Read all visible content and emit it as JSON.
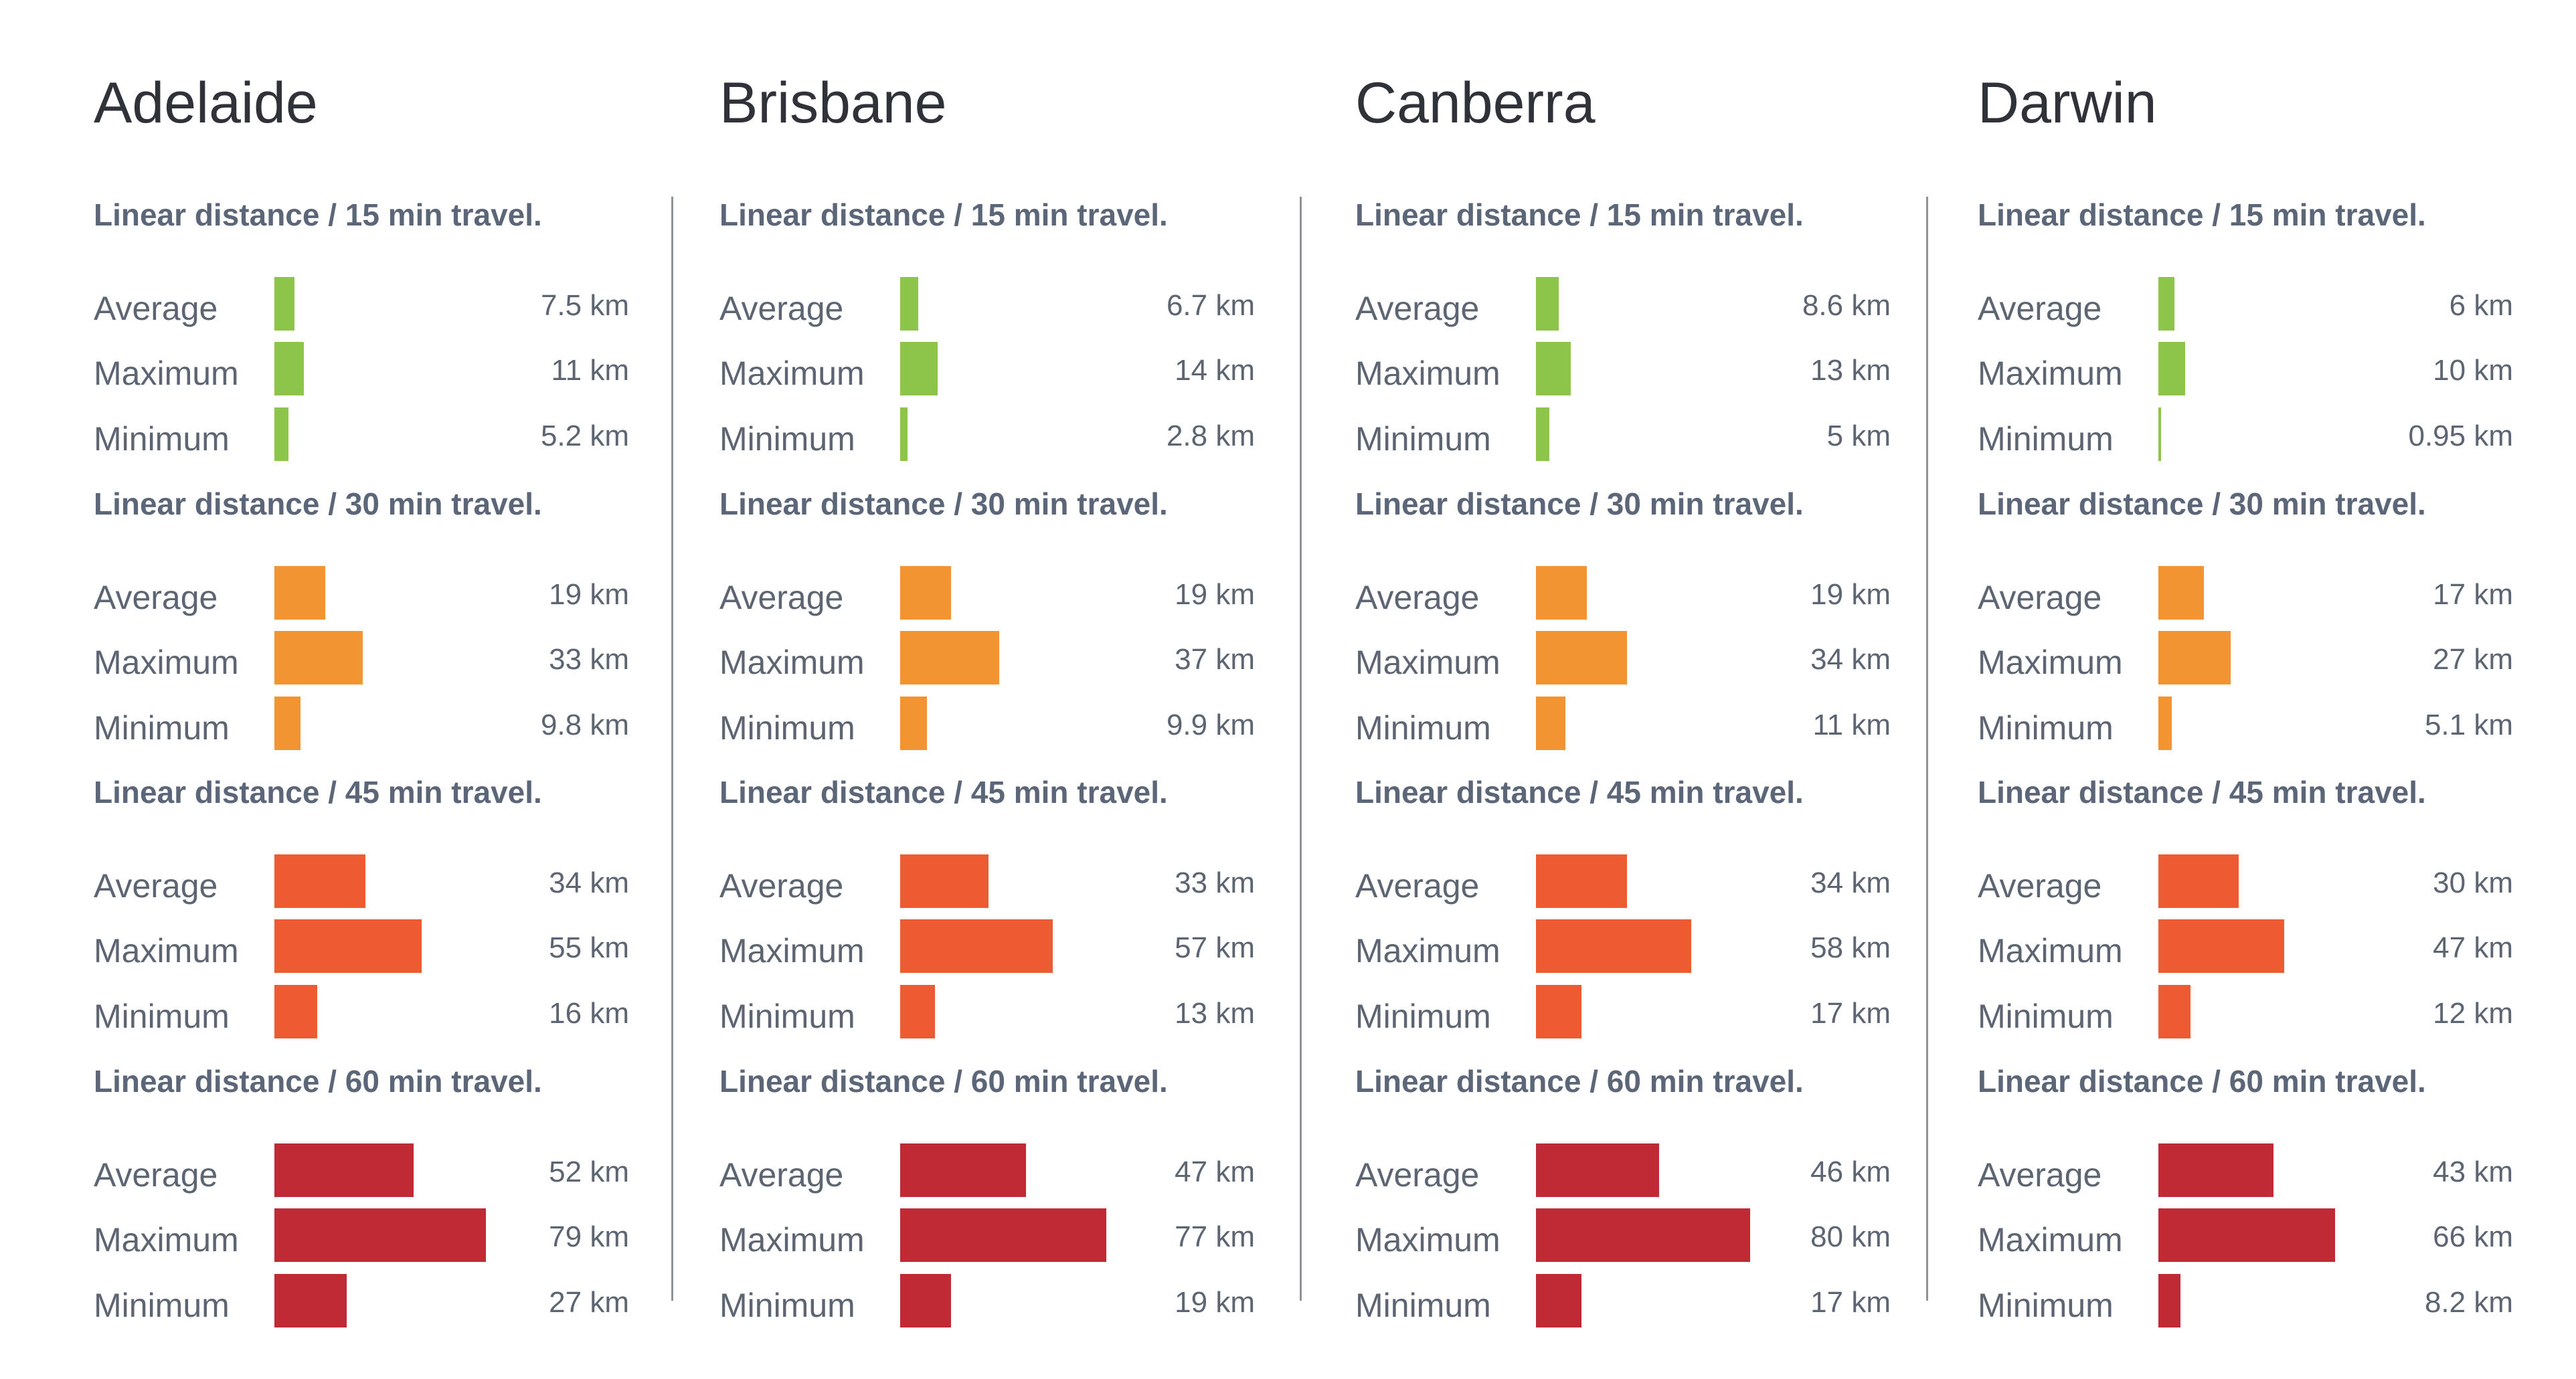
{
  "colors": {
    "15": "#8cc54a",
    "30": "#f39433",
    "45": "#ec5b32",
    "60": "#c02a35",
    "text": "#5d6573",
    "title": "#2f3238",
    "divider": "#8e9196"
  },
  "chart_data": {
    "type": "bar",
    "orientation": "horizontal",
    "unit": "km",
    "cities": [
      {
        "name": "Adelaide",
        "groups": [
          {
            "title": "Linear distance / 15 min travel.",
            "minutes": 15,
            "rows": [
              {
                "label": "Average",
                "value": 7.5,
                "text": "7.5 km"
              },
              {
                "label": "Maximum",
                "value": 11,
                "text": "11 km"
              },
              {
                "label": "Minimum",
                "value": 5.2,
                "text": "5.2 km"
              }
            ]
          },
          {
            "title": "Linear distance / 30 min travel.",
            "minutes": 30,
            "rows": [
              {
                "label": "Average",
                "value": 19,
                "text": "19 km"
              },
              {
                "label": "Maximum",
                "value": 33,
                "text": "33 km"
              },
              {
                "label": "Minimum",
                "value": 9.8,
                "text": "9.8 km"
              }
            ]
          },
          {
            "title": "Linear distance / 45 min travel.",
            "minutes": 45,
            "rows": [
              {
                "label": "Average",
                "value": 34,
                "text": "34 km"
              },
              {
                "label": "Maximum",
                "value": 55,
                "text": "55 km"
              },
              {
                "label": "Minimum",
                "value": 16,
                "text": "16 km"
              }
            ]
          },
          {
            "title": "Linear distance / 60 min travel.",
            "minutes": 60,
            "rows": [
              {
                "label": "Average",
                "value": 52,
                "text": "52 km"
              },
              {
                "label": "Maximum",
                "value": 79,
                "text": "79 km"
              },
              {
                "label": "Minimum",
                "value": 27,
                "text": "27 km"
              }
            ]
          }
        ]
      },
      {
        "name": "Brisbane",
        "groups": [
          {
            "title": "Linear distance / 15 min travel.",
            "minutes": 15,
            "rows": [
              {
                "label": "Average",
                "value": 6.7,
                "text": "6.7 km"
              },
              {
                "label": "Maximum",
                "value": 14,
                "text": "14 km"
              },
              {
                "label": "Minimum",
                "value": 2.8,
                "text": "2.8 km"
              }
            ]
          },
          {
            "title": "Linear distance / 30 min travel.",
            "minutes": 30,
            "rows": [
              {
                "label": "Average",
                "value": 19,
                "text": "19 km"
              },
              {
                "label": "Maximum",
                "value": 37,
                "text": "37 km"
              },
              {
                "label": "Minimum",
                "value": 9.9,
                "text": "9.9 km"
              }
            ]
          },
          {
            "title": "Linear distance / 45 min travel.",
            "minutes": 45,
            "rows": [
              {
                "label": "Average",
                "value": 33,
                "text": "33 km"
              },
              {
                "label": "Maximum",
                "value": 57,
                "text": "57 km"
              },
              {
                "label": "Minimum",
                "value": 13,
                "text": "13 km"
              }
            ]
          },
          {
            "title": "Linear distance / 60 min travel.",
            "minutes": 60,
            "rows": [
              {
                "label": "Average",
                "value": 47,
                "text": "47 km"
              },
              {
                "label": "Maximum",
                "value": 77,
                "text": "77 km"
              },
              {
                "label": "Minimum",
                "value": 19,
                "text": "19 km"
              }
            ]
          }
        ]
      },
      {
        "name": "Canberra",
        "groups": [
          {
            "title": "Linear distance / 15 min travel.",
            "minutes": 15,
            "rows": [
              {
                "label": "Average",
                "value": 8.6,
                "text": "8.6 km"
              },
              {
                "label": "Maximum",
                "value": 13,
                "text": "13 km"
              },
              {
                "label": "Minimum",
                "value": 5,
                "text": "5 km"
              }
            ]
          },
          {
            "title": "Linear distance / 30 min travel.",
            "minutes": 30,
            "rows": [
              {
                "label": "Average",
                "value": 19,
                "text": "19 km"
              },
              {
                "label": "Maximum",
                "value": 34,
                "text": "34 km"
              },
              {
                "label": "Minimum",
                "value": 11,
                "text": "11 km"
              }
            ]
          },
          {
            "title": "Linear distance / 45 min travel.",
            "minutes": 45,
            "rows": [
              {
                "label": "Average",
                "value": 34,
                "text": "34 km"
              },
              {
                "label": "Maximum",
                "value": 58,
                "text": "58 km"
              },
              {
                "label": "Minimum",
                "value": 17,
                "text": "17 km"
              }
            ]
          },
          {
            "title": "Linear distance / 60 min travel.",
            "minutes": 60,
            "rows": [
              {
                "label": "Average",
                "value": 46,
                "text": "46 km"
              },
              {
                "label": "Maximum",
                "value": 80,
                "text": "80 km"
              },
              {
                "label": "Minimum",
                "value": 17,
                "text": "17 km"
              }
            ]
          }
        ]
      },
      {
        "name": "Darwin",
        "groups": [
          {
            "title": "Linear distance / 15 min travel.",
            "minutes": 15,
            "rows": [
              {
                "label": "Average",
                "value": 6,
                "text": "6 km"
              },
              {
                "label": "Maximum",
                "value": 10,
                "text": "10 km"
              },
              {
                "label": "Minimum",
                "value": 0.95,
                "text": "0.95 km"
              }
            ]
          },
          {
            "title": "Linear distance / 30 min travel.",
            "minutes": 30,
            "rows": [
              {
                "label": "Average",
                "value": 17,
                "text": "17 km"
              },
              {
                "label": "Maximum",
                "value": 27,
                "text": "27 km"
              },
              {
                "label": "Minimum",
                "value": 5.1,
                "text": "5.1 km"
              }
            ]
          },
          {
            "title": "Linear distance / 45 min travel.",
            "minutes": 45,
            "rows": [
              {
                "label": "Average",
                "value": 30,
                "text": "30 km"
              },
              {
                "label": "Maximum",
                "value": 47,
                "text": "47 km"
              },
              {
                "label": "Minimum",
                "value": 12,
                "text": "12 km"
              }
            ]
          },
          {
            "title": "Linear distance / 60 min travel.",
            "minutes": 60,
            "rows": [
              {
                "label": "Average",
                "value": 43,
                "text": "43 km"
              },
              {
                "label": "Maximum",
                "value": 66,
                "text": "66 km"
              },
              {
                "label": "Minimum",
                "value": 8.2,
                "text": "8.2 km"
              }
            ]
          }
        ]
      }
    ],
    "xlim": [
      0,
      80
    ],
    "grid": false,
    "legend": "none"
  }
}
